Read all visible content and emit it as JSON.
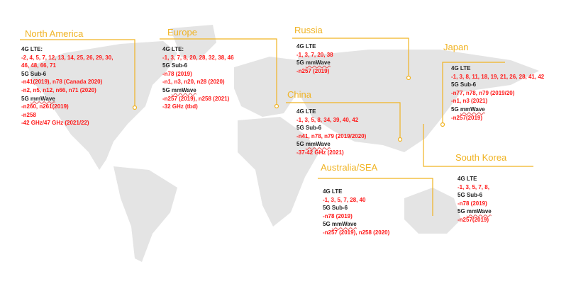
{
  "accent_color": "#f0b323",
  "band_color": "#ff1a1a",
  "regions": {
    "north_america": {
      "title": "North America",
      "lines": [
        {
          "t": "4G LTE:",
          "k": "h"
        },
        {
          "t": "-2, 4, 5, 7, 12, 13, 14, 25, 26, 29, 30,",
          "k": "r"
        },
        {
          "t": " 46, 48, 66, 71",
          "k": "r"
        },
        {
          "t": "5G Sub-6",
          "k": "h"
        },
        {
          "t": "-n41(2019), n78 (Canada 2020)",
          "k": "r"
        },
        {
          "t": "-n2, n5, n12, n66, n71 (2020)",
          "k": "r"
        },
        {
          "t": "5G mmWave",
          "k": "h"
        },
        {
          "t": "-n260, n261(2019)",
          "k": "r"
        },
        {
          "t": "-n258",
          "k": "r"
        },
        {
          "t": "-42 GHz/47 GHz (2021/22)",
          "k": "r"
        }
      ]
    },
    "europe": {
      "title": "Europe",
      "lines": [
        {
          "t": "4G LTE:",
          "k": "h"
        },
        {
          "t": "-1, 3, 7, 8, 20, 28, 32, 38, 46",
          "k": "r"
        },
        {
          "t": "5G Sub-6",
          "k": "h"
        },
        {
          "t": "-n78 (2019)",
          "k": "r"
        },
        {
          "t": "-n1, n3, n20, n28 (2020)",
          "k": "r"
        },
        {
          "t": "5G mmWave",
          "k": "h"
        },
        {
          "t": "-n257 (2019), n258 (2021)",
          "k": "r"
        },
        {
          "t": "-32 GHz (tbd)",
          "k": "r"
        }
      ]
    },
    "russia": {
      "title": "Russia",
      "lines": [
        {
          "t": "4G LTE",
          "k": "h"
        },
        {
          "t": "-1, 3, 7, 20, 38",
          "k": "r"
        },
        {
          "t": "5G mmWave",
          "k": "h"
        },
        {
          "t": "-n257 (2019)",
          "k": "r"
        }
      ]
    },
    "japan": {
      "title": "Japan",
      "lines": [
        {
          "t": "4G LTE",
          "k": "h"
        },
        {
          "t": "-1, 3, 8, 11, 18, 19, 21, 26, 28, 41, 42",
          "k": "r"
        },
        {
          "t": "5G Sub-6",
          "k": "h"
        },
        {
          "t": "-n77, n78, n79 (2019/20)",
          "k": "r"
        },
        {
          "t": "-n1, n3 (2021)",
          "k": "r"
        },
        {
          "t": "5G mmWave",
          "k": "h"
        },
        {
          "t": "-n257(2019)",
          "k": "r"
        }
      ]
    },
    "china": {
      "title": "China",
      "lines": [
        {
          "t": "4G LTE",
          "k": "h"
        },
        {
          "t": "-1, 3, 5, 8, 34, 39, 40, 42",
          "k": "r"
        },
        {
          "t": "5G Sub-6",
          "k": "h"
        },
        {
          "t": "-n41, n78, n79 (2019/2020)",
          "k": "r"
        },
        {
          "t": "5G mmWave",
          "k": "h"
        },
        {
          "t": "-37-42 GHz (2021)",
          "k": "r"
        }
      ]
    },
    "south_korea": {
      "title": "South Korea",
      "lines": [
        {
          "t": "4G LTE",
          "k": "h"
        },
        {
          "t": "-1, 3, 5, 7, 8,",
          "k": "r"
        },
        {
          "t": "5G Sub-6",
          "k": "h"
        },
        {
          "t": "-n78 (2019)",
          "k": "r"
        },
        {
          "t": "5G mmWave",
          "k": "h"
        },
        {
          "t": "-n257(2019)",
          "k": "r"
        }
      ]
    },
    "australia_sea": {
      "title": "Australia/SEA",
      "lines": [
        {
          "t": "4G LTE",
          "k": "h"
        },
        {
          "t": "-1, 3, 5, 7, 28, 40",
          "k": "r"
        },
        {
          "t": "5G Sub-6",
          "k": "h"
        },
        {
          "t": "-n78 (2019)",
          "k": "r"
        },
        {
          "t": "5G mmWave",
          "k": "h"
        },
        {
          "t": "-n257 (2019), n258 (2020)",
          "k": "r"
        }
      ]
    }
  }
}
